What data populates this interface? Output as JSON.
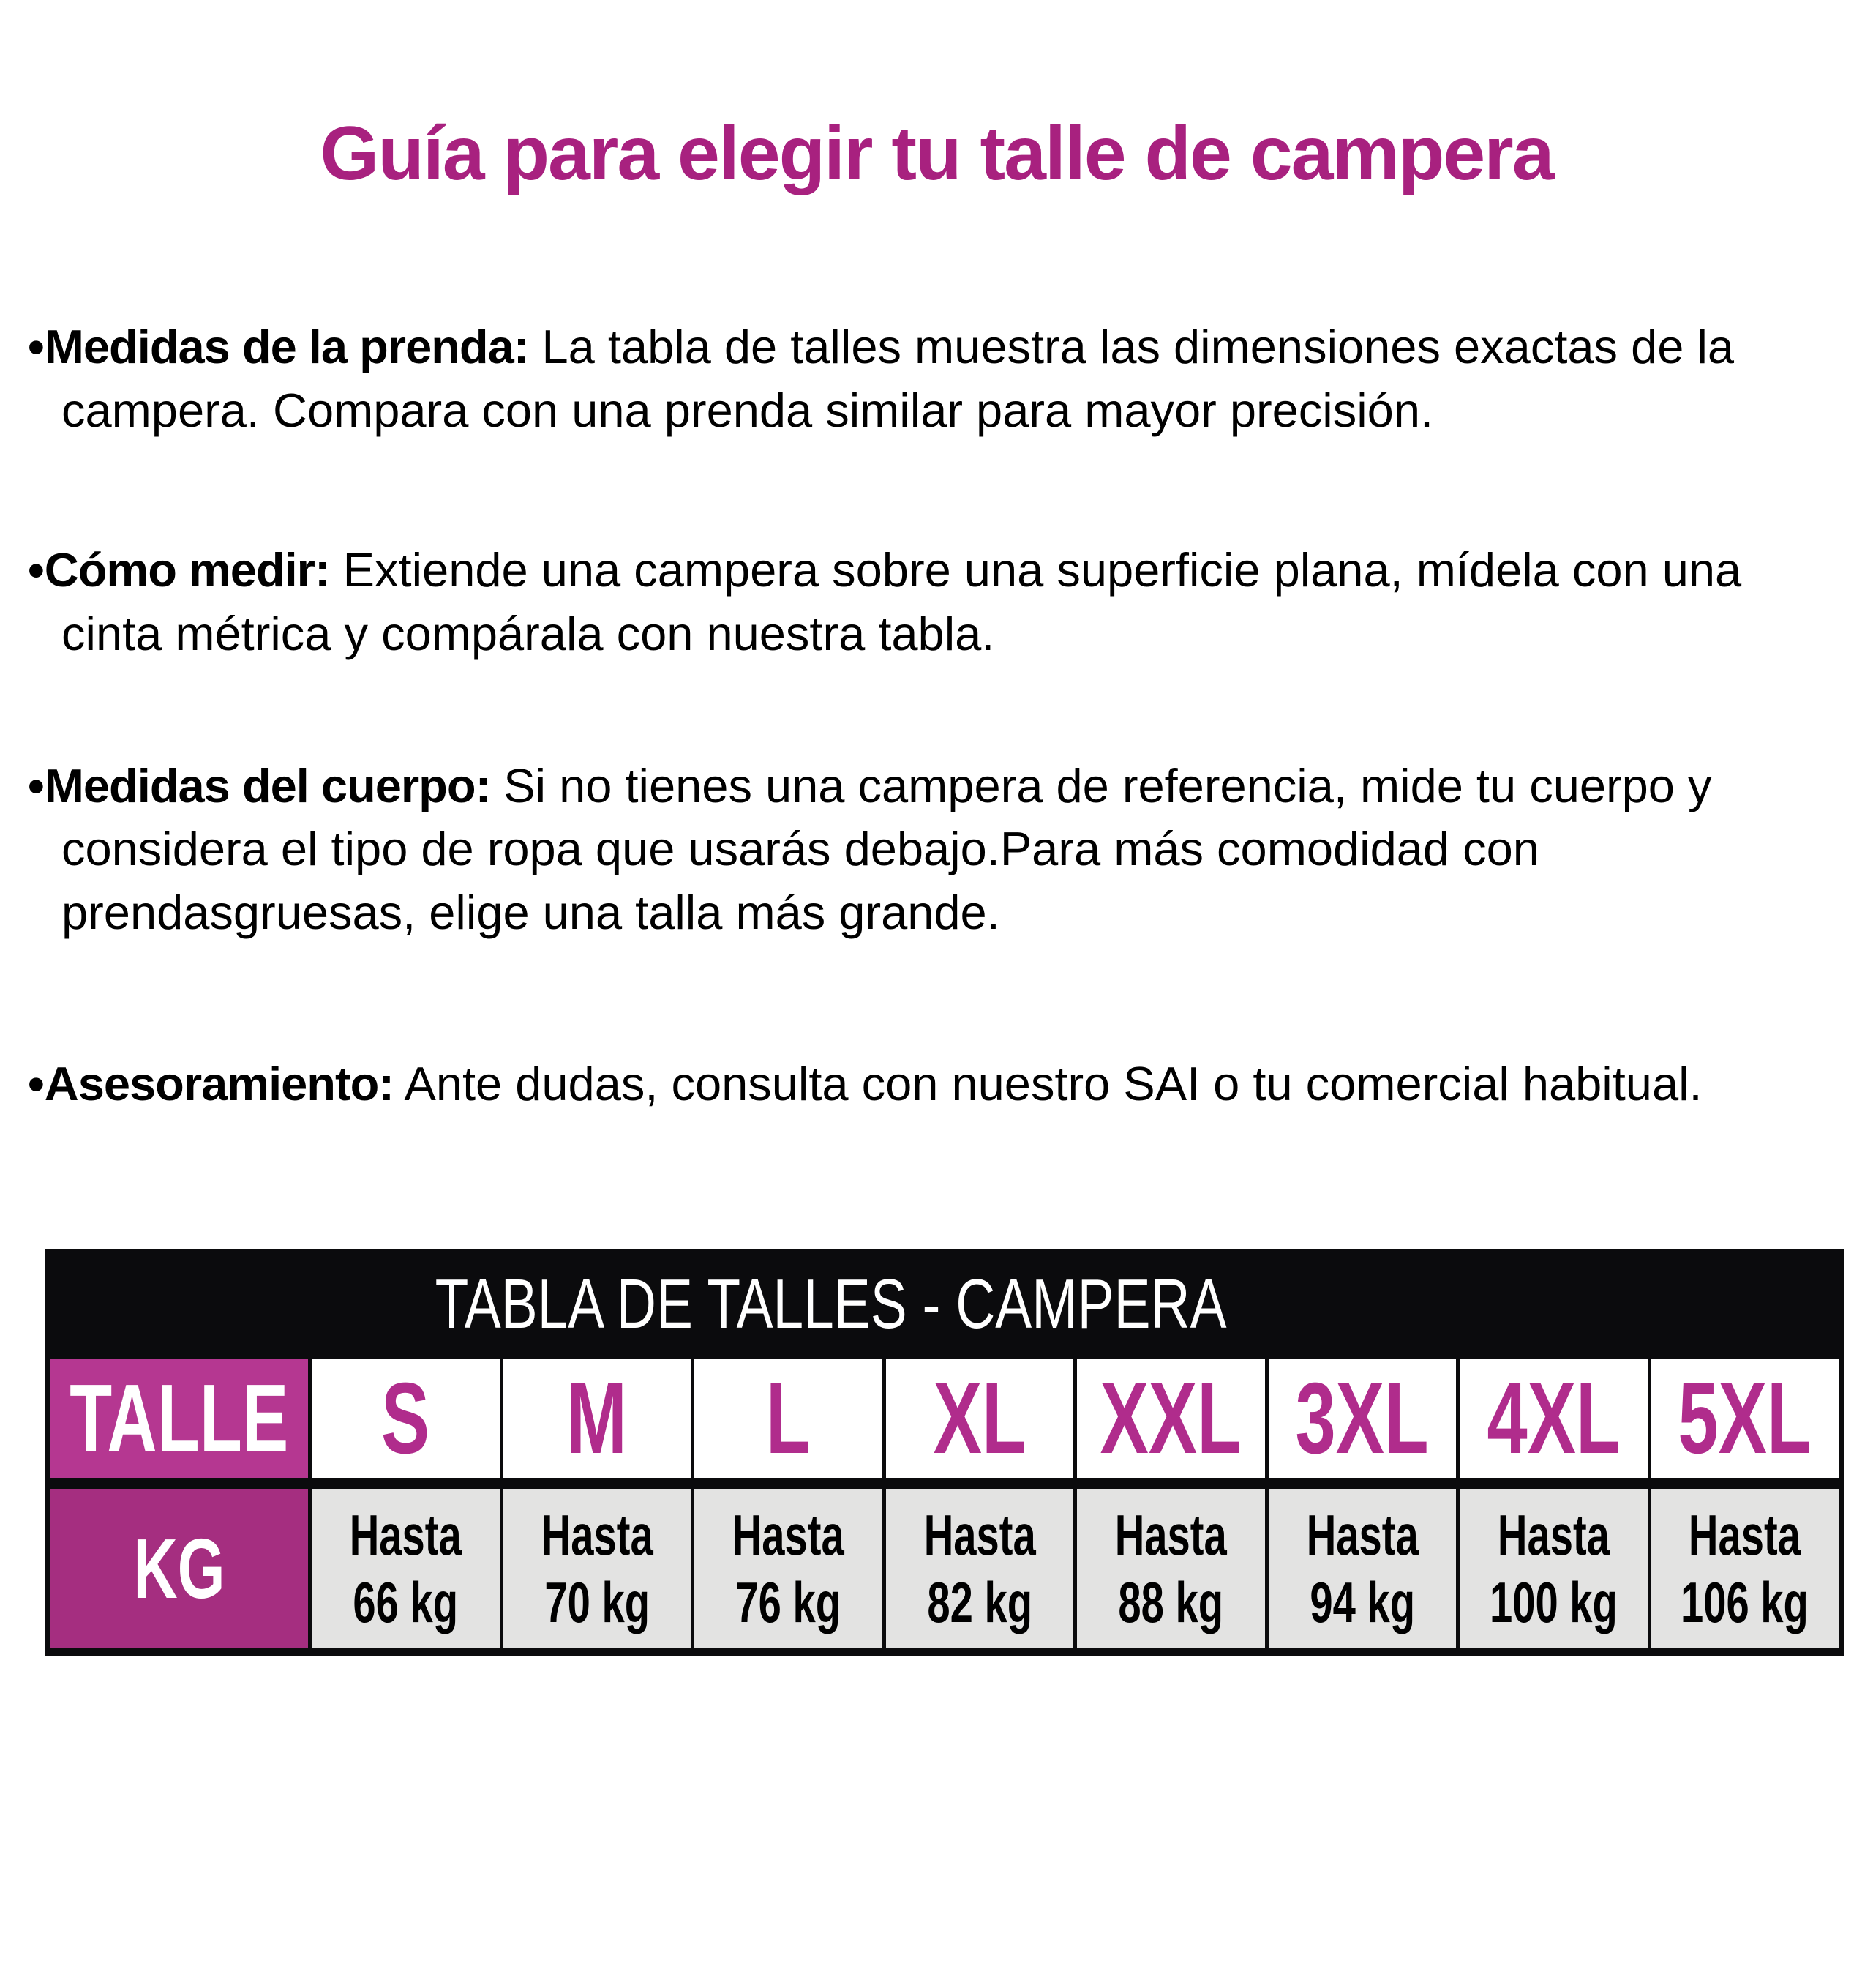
{
  "page_title": "Guía para elegir tu talle de campera",
  "bullet_marker": "•",
  "bullets": [
    {
      "label": "Medidas de la prenda:",
      "text": " La tabla de talles muestra las dimensiones exactas de la campera. Compara con una prenda similar para mayor precisión."
    },
    {
      "label": "Cómo medir:",
      "text": " Extiende una campera sobre una superficie plana, mídela con una cinta métrica y compárala con nuestra tabla."
    },
    {
      "label": "Medidas del cuerpo:",
      "text": " Si no tienes una campera de referencia, mide tu cuerpo y considera el tipo de ropa que usarás debajo.Para más comodidad con prendasgruesas, elige una talla más grande."
    },
    {
      "label": "Asesoramiento:",
      "text": " Ante dudas, consulta con nuestro SAI o tu comercial habitual."
    }
  ],
  "table": {
    "title": "TABLA DE TALLES - CAMPERA",
    "talle_header": "TALLE",
    "kg_header": "KG",
    "hasta_label": "Hasta",
    "sizes": [
      "S",
      "M",
      "L",
      "XL",
      "XXL",
      "3XL",
      "4XL",
      "5XL"
    ],
    "weights": [
      "66 kg",
      "70 kg",
      "76 kg",
      "82 kg",
      "88 kg",
      "94 kg",
      "100 kg",
      "106 kg"
    ]
  },
  "colors": {
    "title": "#A8217F",
    "talle_bg": "#B53791",
    "kg_bg": "#A52E80",
    "size_text": "#B02C8C",
    "cell_gray": "#E3E3E2",
    "band_black": "#0B0B0D"
  }
}
